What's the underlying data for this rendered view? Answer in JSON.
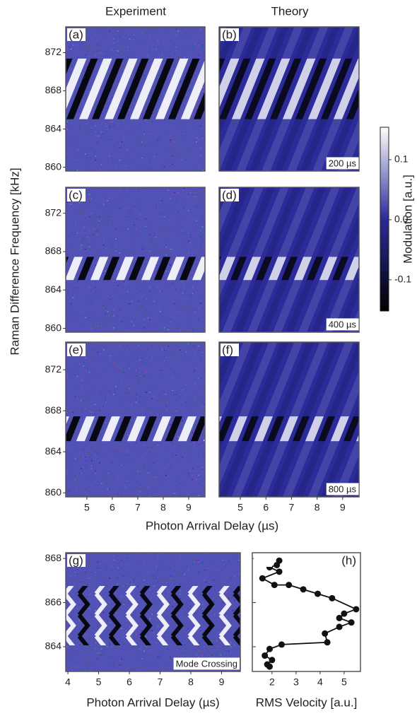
{
  "figure": {
    "column_titles": [
      "Experiment",
      "Theory"
    ],
    "ylabel": "Raman Difference Frequency [kHz]"
  },
  "chart_data": [
    {
      "type": "heatmap",
      "panel_label": "(a)",
      "xlim": [
        4.17,
        9.64
      ],
      "ylim": [
        859.6,
        874.7
      ],
      "yticks": [
        860,
        864,
        868,
        872
      ]
    },
    {
      "type": "heatmap",
      "panel_label": "(b)",
      "annotation": "200 µs",
      "xlim": [
        4.17,
        9.64
      ],
      "ylim": [
        859.6,
        874.7
      ]
    },
    {
      "type": "heatmap",
      "panel_label": "(c)",
      "xlim": [
        4.17,
        9.64
      ],
      "ylim": [
        859.6,
        874.7
      ],
      "yticks": [
        860,
        864,
        868,
        872
      ]
    },
    {
      "type": "heatmap",
      "panel_label": "(d)",
      "annotation": "400 µs",
      "xlim": [
        4.17,
        9.64
      ],
      "ylim": [
        859.6,
        874.7
      ]
    },
    {
      "type": "heatmap",
      "panel_label": "(e)",
      "xlim": [
        4.17,
        9.64
      ],
      "ylim": [
        859.6,
        874.7
      ],
      "yticks": [
        860,
        864,
        868,
        872
      ],
      "xticks": [
        5,
        6,
        7,
        8,
        9
      ]
    },
    {
      "type": "heatmap",
      "panel_label": "(f)",
      "annotation": "800 µs",
      "xlim": [
        4.17,
        9.64
      ],
      "ylim": [
        859.6,
        874.7
      ],
      "xticks": [
        5,
        6,
        7,
        8,
        9
      ],
      "xlabel": "Photon Arrival Delay (µs)"
    },
    {
      "type": "heatmap",
      "panel_label": "(g)",
      "annotation": "Mode Crossing",
      "xlim": [
        3.93,
        9.61
      ],
      "ylim": [
        862.88,
        868.26
      ],
      "yticks": [
        864,
        866,
        868
      ],
      "xticks": [
        4,
        5,
        6,
        7,
        8,
        9
      ],
      "xlabel": "Photon Arrival Delay (µs)"
    },
    {
      "type": "line",
      "panel_label": "(h)",
      "xlabel": "RMS Velocity [a.u.]",
      "color": "#111111",
      "xlim": [
        1.18,
        5.68
      ],
      "ylim": [
        862.88,
        868.26
      ],
      "xticks": [
        2,
        3,
        4,
        5
      ],
      "yticks": [
        864,
        866,
        868
      ],
      "x": [
        2.3,
        2.2,
        1.9,
        2.3,
        1.6,
        2.1,
        2.7,
        3.3,
        3.9,
        4.5,
        5.5,
        5.0,
        4.8,
        5.3,
        4.8,
        4.2,
        4.3,
        2.4,
        1.9,
        1.7,
        2.0,
        1.8,
        1.9
      ],
      "values": [
        867.9,
        867.7,
        867.6,
        867.4,
        867.1,
        866.8,
        866.8,
        866.6,
        866.4,
        866.2,
        865.7,
        865.5,
        865.3,
        865.1,
        864.9,
        864.6,
        864.2,
        864.1,
        863.9,
        863.6,
        863.4,
        863.2,
        863.1
      ]
    },
    {
      "type": "colorbar",
      "label": "Modulation [a.u.]",
      "clim": [
        -0.152,
        0.154
      ],
      "cmap": [
        "#000000",
        "#2b2b9a",
        "#ffffff"
      ],
      "cticks": [
        -0.1,
        {
          "value": 0.0,
          "label": "0.0"
        },
        0.1
      ]
    }
  ]
}
